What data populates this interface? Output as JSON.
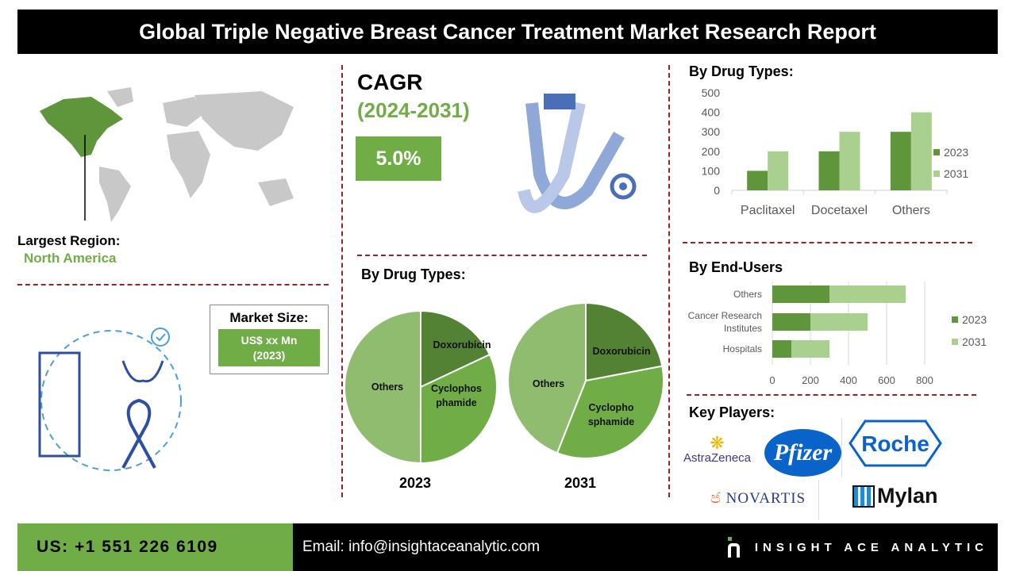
{
  "header": {
    "title": "Global Triple Negative Breast Cancer Treatment Market Research Report"
  },
  "region": {
    "label": "Largest Region:",
    "value": "North America"
  },
  "cagr": {
    "label": "CAGR",
    "period": "(2024-2031)",
    "value": "5.0%"
  },
  "market_size": {
    "label": "Market Size:",
    "value_line1": "US$ xx Mn",
    "value_line2": "(2023)"
  },
  "colors": {
    "dark_green": "#5f963c",
    "light_green": "#a9d08e",
    "pie_dark": "#548235",
    "pie_mid": "#70ad47",
    "pie_light": "#8fbc6e",
    "accent_red": "#a31f24"
  },
  "chart_data": [
    {
      "type": "bar",
      "title": "By  Drug Types:",
      "categories": [
        "Paclitaxel",
        "Docetaxel",
        "Others"
      ],
      "series": [
        {
          "name": "2023",
          "values": [
            100,
            200,
            300
          ]
        },
        {
          "name": "2031",
          "values": [
            200,
            300,
            400
          ]
        }
      ],
      "ylim": [
        0,
        500
      ],
      "yticks": [
        "0",
        "100",
        "200",
        "300",
        "400",
        "500"
      ],
      "legend": "right",
      "grid": false
    },
    {
      "type": "pie",
      "title": "By  Drug Types:",
      "label": "2023",
      "slices": [
        {
          "name": "Doxorubicin",
          "value": 18
        },
        {
          "name": "Cyclophos phamide",
          "line1": "Cyclophos",
          "line2": "phamide",
          "value": 32
        },
        {
          "name": "Others",
          "value": 50
        }
      ]
    },
    {
      "type": "pie",
      "label": "2031",
      "slices": [
        {
          "name": "Doxorubicin",
          "value": 22
        },
        {
          "name": "Cyclopho sphamide",
          "line1": "Cyclopho",
          "line2": "sphamide",
          "value": 34
        },
        {
          "name": "Others",
          "value": 44
        }
      ]
    },
    {
      "type": "bar",
      "orientation": "horizontal",
      "stacked": true,
      "title": "By End-Users",
      "categories": [
        "Others",
        "Cancer Research Institutes",
        "Hospitals"
      ],
      "category_lines": [
        [
          "Others"
        ],
        [
          "Cancer Research",
          "Institutes"
        ],
        [
          "Hospitals"
        ]
      ],
      "series": [
        {
          "name": "2023",
          "values": [
            300,
            200,
            100
          ]
        },
        {
          "name": "2031",
          "values": [
            400,
            300,
            200
          ]
        }
      ],
      "xlim": [
        0,
        800
      ],
      "xticks": [
        "0",
        "200",
        "400",
        "600",
        "800"
      ],
      "legend": "right",
      "grid": true
    }
  ],
  "key_players": {
    "label": "Key Players:",
    "items": [
      "AstraZeneca",
      "Pfizer",
      "Roche",
      "NOVARTIS",
      "Mylan"
    ]
  },
  "footer": {
    "phone": "US: +1 551 226 6109",
    "email": "Email: info@insightaceanalytic.com",
    "brand": "INSIGHT ACE ANALYTIC"
  }
}
